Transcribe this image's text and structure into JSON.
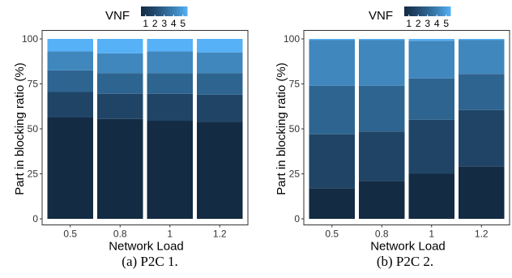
{
  "colors": {
    "vnf1": "#132B43",
    "vnf2": "#1F4466",
    "vnf3": "#2E6490",
    "vnf4": "#3F87BD",
    "vnf5": "#56B1F7",
    "axis": "#333333",
    "background": "#ffffff"
  },
  "chart_data": [
    {
      "type": "bar",
      "stacked": true,
      "caption": "(a) P2C 1.",
      "xlabel": "Network Load",
      "ylabel": "Part in blocking ratio (%)",
      "categories": [
        "0.5",
        "0.8",
        "1",
        "1.2"
      ],
      "ylim": [
        0,
        100
      ],
      "yticks": [
        "0",
        "25",
        "50",
        "75",
        "100"
      ],
      "grid": false,
      "legend": {
        "title": "VNF",
        "position": "top",
        "labels": [
          "1",
          "2",
          "3",
          "4",
          "5"
        ]
      },
      "series": [
        {
          "name": "1",
          "values": [
            56.5,
            55.5,
            54.5,
            54
          ]
        },
        {
          "name": "2",
          "values": [
            14,
            14,
            15,
            15
          ]
        },
        {
          "name": "3",
          "values": [
            12,
            11.5,
            11.5,
            12
          ]
        },
        {
          "name": "4",
          "values": [
            10.5,
            11,
            12,
            11.5
          ]
        },
        {
          "name": "5",
          "values": [
            7,
            8,
            7,
            7.5
          ]
        }
      ]
    },
    {
      "type": "bar",
      "stacked": true,
      "caption": "(b) P2C 2.",
      "xlabel": "Network Load",
      "ylabel": "Part in blocking ratio (%)",
      "categories": [
        "0.5",
        "0.8",
        "1",
        "1.2"
      ],
      "ylim": [
        0,
        100
      ],
      "yticks": [
        "0",
        "25",
        "50",
        "75",
        "100"
      ],
      "grid": false,
      "legend": {
        "title": "VNF",
        "position": "top",
        "labels": [
          "1",
          "2",
          "3",
          "4",
          "5"
        ]
      },
      "series": [
        {
          "name": "1",
          "values": [
            17,
            21,
            25,
            29
          ]
        },
        {
          "name": "2",
          "values": [
            30,
            27.5,
            30,
            31.5
          ]
        },
        {
          "name": "3",
          "values": [
            27,
            25.5,
            23,
            20
          ]
        },
        {
          "name": "4",
          "values": [
            25.5,
            25.5,
            21,
            19
          ]
        },
        {
          "name": "5",
          "values": [
            0.5,
            0.5,
            1,
            0.5
          ]
        }
      ]
    }
  ]
}
